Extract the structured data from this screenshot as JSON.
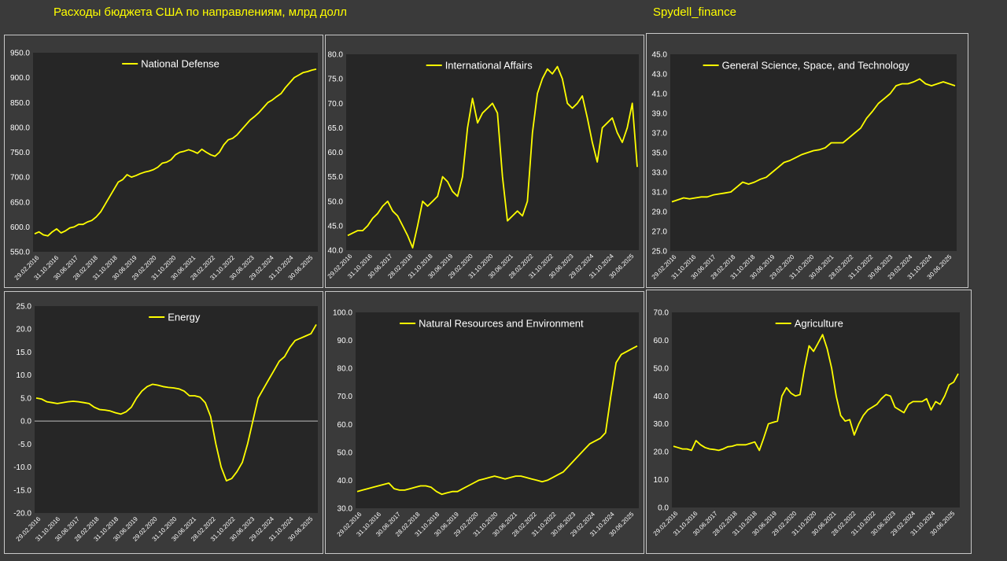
{
  "header": {
    "title": "Расходы бюджета США по направлениям, млрд долл",
    "source": "Spydell_finance"
  },
  "colors": {
    "line": "#ffff00",
    "plot_bg": "#262626",
    "page_bg": "#3a3a3a",
    "grid": "#555555"
  },
  "x_tick_labels": [
    "29.02.2016",
    "31.10.2016",
    "30.06.2017",
    "28.02.2018",
    "31.10.2018",
    "30.06.2019",
    "29.02.2020",
    "31.10.2020",
    "30.06.2021",
    "28.02.2022",
    "31.10.2022",
    "30.06.2023",
    "29.02.2024",
    "31.10.2024",
    "30.06.2025"
  ],
  "chart_data": [
    {
      "type": "line",
      "series": [
        {
          "name": "National Defense",
          "x_range": [
            "2016-02",
            "2025-10"
          ],
          "values": [
            586,
            590,
            584,
            582,
            590,
            596,
            588,
            592,
            598,
            600,
            605,
            605,
            610,
            613,
            620,
            630,
            645,
            660,
            675,
            690,
            695,
            705,
            700,
            703,
            707,
            710,
            712,
            715,
            720,
            728,
            730,
            735,
            745,
            750,
            752,
            755,
            752,
            748,
            756,
            750,
            745,
            742,
            750,
            765,
            775,
            778,
            785,
            795,
            805,
            815,
            822,
            830,
            840,
            850,
            855,
            862,
            868,
            880,
            890,
            900,
            905,
            910,
            912,
            915,
            917
          ]
        }
      ],
      "ylim": [
        550,
        950
      ],
      "yticks": [
        550,
        600,
        650,
        700,
        750,
        800,
        850,
        900,
        950
      ],
      "ytick_format": 1,
      "legend": "top-center",
      "grid": false
    },
    {
      "type": "line",
      "series": [
        {
          "name": "International Affairs",
          "x_range": [
            "2016-02",
            "2025-10"
          ],
          "values": [
            43,
            43.5,
            44,
            44,
            45,
            46.5,
            47.5,
            49,
            50,
            48,
            47,
            45,
            43,
            40.5,
            45,
            50,
            49,
            50,
            51,
            55,
            54,
            52,
            51,
            55,
            65,
            71,
            66,
            68,
            69,
            70,
            68,
            55,
            46,
            47,
            48,
            47,
            50,
            64,
            72,
            75,
            77,
            76,
            77.5,
            75,
            70,
            69,
            70,
            71.5,
            67,
            62,
            58,
            65,
            66,
            67,
            64,
            62,
            65,
            70,
            57
          ]
        }
      ],
      "ylim": [
        40,
        80
      ],
      "yticks": [
        40,
        45,
        50,
        55,
        60,
        65,
        70,
        75,
        80
      ],
      "ytick_format": 1,
      "legend": "top-center",
      "grid": false
    },
    {
      "type": "line",
      "series": [
        {
          "name": "General Science, Space, and Technology",
          "x_range": [
            "2016-02",
            "2025-10"
          ],
          "values": [
            30,
            30.2,
            30.4,
            30.3,
            30.4,
            30.5,
            30.5,
            30.7,
            30.8,
            30.9,
            31,
            31.5,
            32,
            31.8,
            32,
            32.3,
            32.5,
            33,
            33.5,
            34,
            34.2,
            34.5,
            34.8,
            35,
            35.2,
            35.3,
            35.5,
            36,
            36,
            36,
            36.5,
            37,
            37.5,
            38.5,
            39.2,
            40,
            40.5,
            41,
            41.8,
            42,
            42,
            42.2,
            42.5,
            42,
            41.8,
            42,
            42.2,
            42,
            41.8
          ]
        }
      ],
      "ylim": [
        25,
        45
      ],
      "yticks": [
        25,
        27,
        29,
        31,
        33,
        35,
        37,
        39,
        41,
        43,
        45
      ],
      "ytick_format": 1,
      "legend": "top-center",
      "grid": false
    },
    {
      "type": "line",
      "series": [
        {
          "name": "Energy",
          "x_range": [
            "2016-02",
            "2025-10"
          ],
          "values": [
            5,
            4.8,
            4.2,
            4,
            3.8,
            4,
            4.2,
            4.3,
            4.2,
            4,
            3.8,
            3,
            2.5,
            2.4,
            2.2,
            1.8,
            1.5,
            2,
            3,
            5,
            6.5,
            7.5,
            8,
            7.8,
            7.5,
            7.3,
            7.2,
            7,
            6.5,
            5.5,
            5.5,
            5.2,
            4,
            1,
            -5,
            -10,
            -13,
            -12.5,
            -11,
            -9,
            -5,
            0,
            5,
            7,
            9,
            11,
            13,
            14,
            16,
            17.5,
            18,
            18.5,
            19,
            21
          ]
        }
      ],
      "ylim": [
        -20,
        25
      ],
      "yticks": [
        -20,
        -15,
        -10,
        -5,
        0,
        5,
        10,
        15,
        20,
        25
      ],
      "ytick_format": 1,
      "legend": "top-center",
      "grid": false
    },
    {
      "type": "line",
      "series": [
        {
          "name": "Natural Resources and Environment",
          "x_range": [
            "2016-02",
            "2025-10"
          ],
          "values": [
            36,
            36.5,
            37,
            37.5,
            38,
            38.5,
            39,
            37,
            36.5,
            36.5,
            37,
            37.5,
            38,
            38,
            37.5,
            36,
            35,
            35.5,
            36,
            36,
            37,
            38,
            39,
            40,
            40.5,
            41,
            41.5,
            41,
            40.5,
            41,
            41.5,
            41.5,
            41,
            40.5,
            40,
            39.5,
            40,
            41,
            42,
            43,
            45,
            47,
            49,
            51,
            53,
            54,
            55,
            57,
            70,
            82,
            85,
            86,
            87,
            88
          ]
        }
      ],
      "ylim": [
        30,
        100
      ],
      "yticks": [
        30,
        40,
        50,
        60,
        70,
        80,
        90,
        100
      ],
      "ytick_format": 1,
      "legend": "top-center",
      "grid": false
    },
    {
      "type": "line",
      "series": [
        {
          "name": "Agriculture",
          "x_range": [
            "2016-02",
            "2025-10"
          ],
          "values": [
            22,
            21.5,
            21,
            21,
            20.5,
            24,
            22.5,
            21.5,
            21,
            20.8,
            20.5,
            21,
            21.8,
            22,
            22.5,
            22.5,
            22.5,
            23,
            23.5,
            20.5,
            25,
            30,
            30.5,
            31,
            40,
            43,
            41,
            40,
            40.5,
            50,
            58,
            56,
            59,
            62,
            57,
            50,
            40,
            33,
            31,
            31.5,
            26,
            30,
            33,
            35,
            36,
            37,
            39,
            40.5,
            40,
            36,
            35,
            34,
            37,
            38,
            38,
            38,
            39,
            35,
            38,
            37,
            40,
            44,
            45,
            48
          ]
        }
      ],
      "ylim": [
        0,
        70
      ],
      "yticks": [
        0,
        10,
        20,
        30,
        40,
        50,
        60,
        70
      ],
      "ytick_format": 1,
      "legend": "top-center",
      "grid": false
    }
  ]
}
